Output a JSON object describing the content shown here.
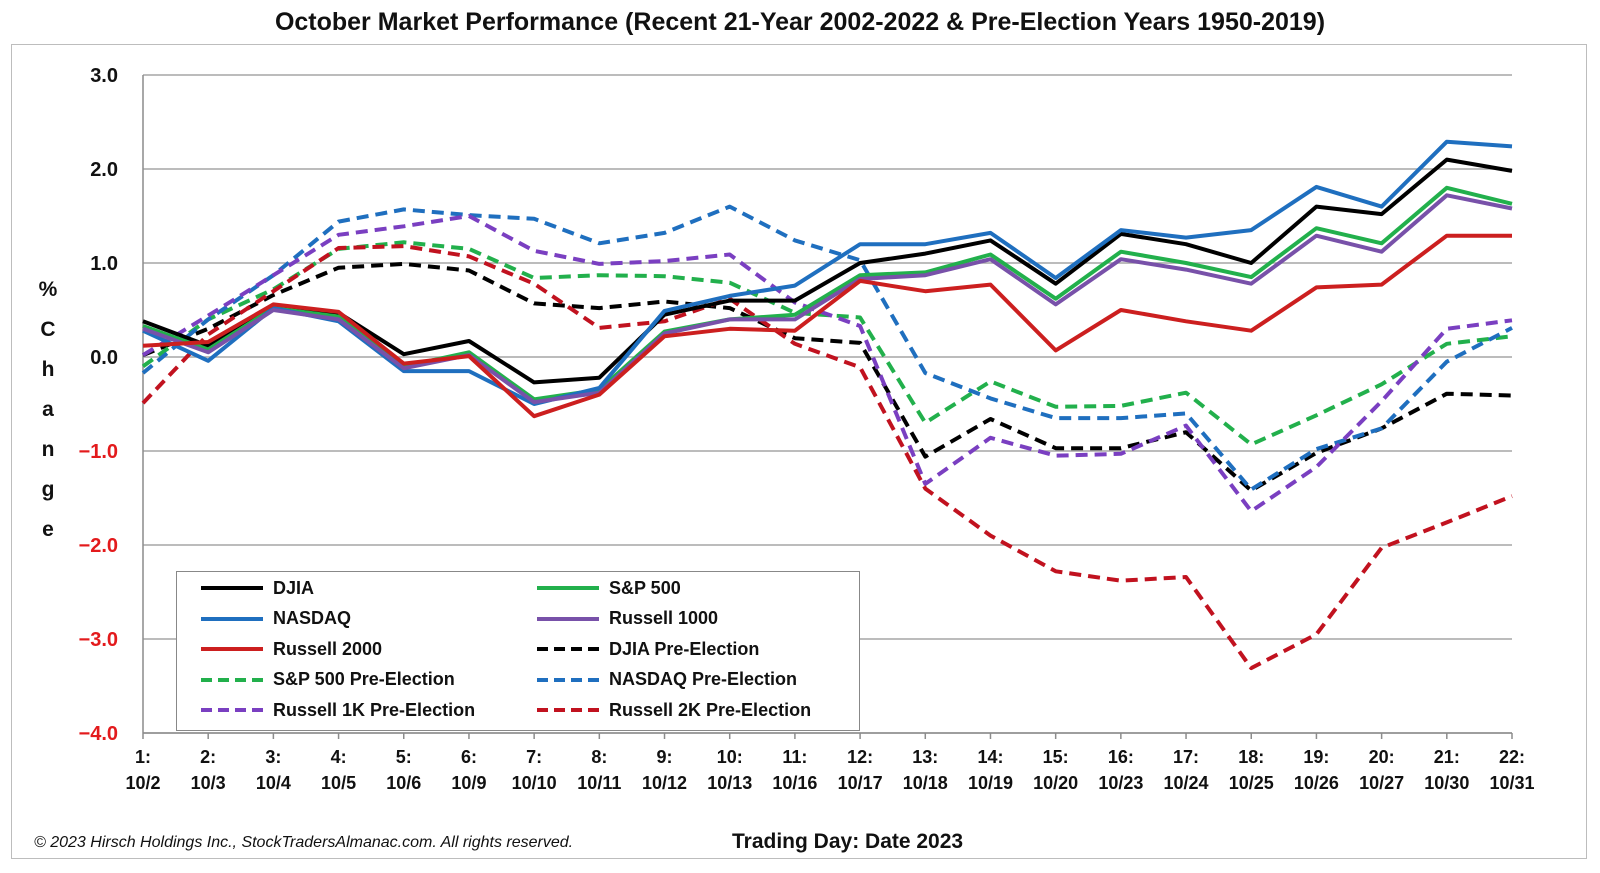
{
  "title": "October Market Performance (Recent 21-Year 2002-2022 & Pre-Election Years 1950-2019)",
  "ylabel": "% Change",
  "xlabel": "Trading Day: Date 2023",
  "copyright": "© 2023 Hirsch Holdings Inc., StockTradersAlmanac.com. All rights reserved.",
  "colors": {
    "positive_tick": "#111111",
    "negative_tick": "#e31a1c",
    "grid": "#a6a6a6"
  },
  "chart_data": {
    "type": "line",
    "title": "October Market Performance (Recent 21-Year 2002-2022 & Pre-Election Years 1950-2019)",
    "xlabel": "Trading Day: Date 2023",
    "ylabel": "% Change",
    "ylim": [
      -4.0,
      3.0
    ],
    "yticks": [
      "3.0",
      "2.0",
      "1.0",
      "0.0",
      "−1.0",
      "−2.0",
      "−3.0",
      "−4.0"
    ],
    "grid": "horizontal",
    "legend_position": "bottom-left",
    "categories": [
      [
        "1:",
        "10/2"
      ],
      [
        "2:",
        "10/3"
      ],
      [
        "3:",
        "10/4"
      ],
      [
        "4:",
        "10/5"
      ],
      [
        "5:",
        "10/6"
      ],
      [
        "6:",
        "10/9"
      ],
      [
        "7:",
        "10/10"
      ],
      [
        "8:",
        "10/11"
      ],
      [
        "9:",
        "10/12"
      ],
      [
        "10:",
        "10/13"
      ],
      [
        "11:",
        "10/16"
      ],
      [
        "12:",
        "10/17"
      ],
      [
        "13:",
        "10/18"
      ],
      [
        "14:",
        "10/19"
      ],
      [
        "15:",
        "10/20"
      ],
      [
        "16:",
        "10/23"
      ],
      [
        "17:",
        "10/24"
      ],
      [
        "18:",
        "10/25"
      ],
      [
        "19:",
        "10/26"
      ],
      [
        "20:",
        "10/27"
      ],
      [
        "21:",
        "10/30"
      ],
      [
        "22:",
        "10/31"
      ]
    ],
    "series": [
      {
        "name": "DJIA",
        "color": "#000000",
        "style": "solid",
        "values": [
          0.38,
          0.12,
          0.55,
          0.47,
          0.03,
          0.17,
          -0.27,
          -0.22,
          0.45,
          0.6,
          0.6,
          1.0,
          1.1,
          1.24,
          0.78,
          1.31,
          1.2,
          1.0,
          1.6,
          1.52,
          2.1,
          1.98
        ]
      },
      {
        "name": "S&P 500",
        "color": "#22b04c",
        "style": "solid",
        "values": [
          0.33,
          0.08,
          0.52,
          0.43,
          -0.1,
          0.05,
          -0.45,
          -0.35,
          0.27,
          0.4,
          0.45,
          0.87,
          0.9,
          1.09,
          0.62,
          1.12,
          1.0,
          0.85,
          1.37,
          1.21,
          1.8,
          1.63
        ]
      },
      {
        "name": "NASDAQ",
        "color": "#1f6fbf",
        "style": "solid",
        "values": [
          0.28,
          -0.04,
          0.52,
          0.38,
          -0.15,
          -0.15,
          -0.5,
          -0.33,
          0.49,
          0.65,
          0.76,
          1.2,
          1.2,
          1.32,
          0.84,
          1.35,
          1.27,
          1.35,
          1.81,
          1.6,
          2.29,
          2.24
        ]
      },
      {
        "name": "Russell 1000",
        "color": "#7851a9",
        "style": "solid",
        "values": [
          0.3,
          0.05,
          0.5,
          0.4,
          -0.12,
          0.02,
          -0.48,
          -0.38,
          0.25,
          0.4,
          0.4,
          0.83,
          0.87,
          1.04,
          0.56,
          1.04,
          0.93,
          0.78,
          1.29,
          1.12,
          1.72,
          1.58
        ]
      },
      {
        "name": "Russell 2000",
        "color": "#cc1f1f",
        "style": "solid",
        "values": [
          0.12,
          0.16,
          0.56,
          0.48,
          -0.07,
          0.01,
          -0.63,
          -0.4,
          0.22,
          0.3,
          0.28,
          0.81,
          0.7,
          0.77,
          0.07,
          0.5,
          0.38,
          0.28,
          0.74,
          0.77,
          1.29,
          1.29
        ]
      },
      {
        "name": "DJIA Pre-Election",
        "color": "#000000",
        "style": "dashed",
        "values": [
          0.02,
          0.3,
          0.66,
          0.95,
          0.99,
          0.92,
          0.57,
          0.52,
          0.59,
          0.52,
          0.2,
          0.15,
          -1.06,
          -0.66,
          -0.97,
          -0.97,
          -0.8,
          -1.42,
          -1.02,
          -0.76,
          -0.39,
          -0.41
        ]
      },
      {
        "name": "S&P 500 Pre-Election",
        "color": "#22b04c",
        "style": "dashed",
        "values": [
          -0.1,
          0.4,
          0.72,
          1.15,
          1.22,
          1.15,
          0.84,
          0.87,
          0.86,
          0.79,
          0.47,
          0.42,
          -0.7,
          -0.26,
          -0.53,
          -0.52,
          -0.38,
          -0.93,
          -0.62,
          -0.29,
          0.14,
          0.22
        ]
      },
      {
        "name": "NASDAQ Pre-Election",
        "color": "#1f6fbf",
        "style": "dashed",
        "values": [
          -0.17,
          0.4,
          0.87,
          1.44,
          1.57,
          1.51,
          1.47,
          1.21,
          1.32,
          1.6,
          1.24,
          1.03,
          -0.17,
          -0.44,
          -0.65,
          -0.65,
          -0.6,
          -1.41,
          -0.98,
          -0.76,
          -0.05,
          0.31
        ]
      },
      {
        "name": "Russell 1K Pre-Election",
        "color": "#7a3fc1",
        "style": "dashed",
        "values": [
          0.02,
          0.44,
          0.87,
          1.3,
          1.39,
          1.5,
          1.13,
          0.99,
          1.02,
          1.09,
          0.58,
          0.33,
          -1.35,
          -0.86,
          -1.05,
          -1.03,
          -0.73,
          -1.64,
          -1.17,
          -0.47,
          0.3,
          0.39
        ]
      },
      {
        "name": "Russell 2K Pre-Election",
        "color": "#c1121f",
        "style": "dashed",
        "values": [
          -0.49,
          0.24,
          0.7,
          1.16,
          1.18,
          1.07,
          0.78,
          0.31,
          0.38,
          0.62,
          0.14,
          -0.11,
          -1.4,
          -1.9,
          -2.28,
          -2.38,
          -2.34,
          -3.31,
          -2.95,
          -2.03,
          -1.76,
          -1.48
        ]
      }
    ]
  }
}
